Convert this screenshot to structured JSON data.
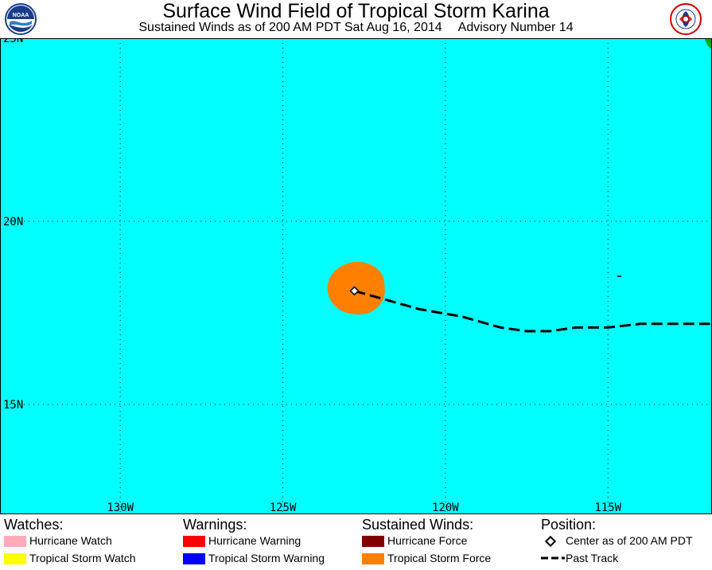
{
  "header": {
    "title": "Surface Wind Field of Tropical Storm Karina",
    "subtitle_left": "Sustained Winds as of 200 AM PDT Sat Aug 16, 2014",
    "subtitle_right": "Advisory Number 14",
    "left_logo_text": "NOAA",
    "right_logo_text": "NATIONAL WEATHER SERVICE"
  },
  "map": {
    "colors": {
      "ocean": "#00ffff",
      "land": "#00aa00",
      "grid": "#000000",
      "tropical_storm_force": "#ff8000",
      "hurricane_force": "#800000",
      "hurricane_watch": "#ffaabb",
      "tropical_storm_watch": "#ffff00",
      "hurricane_warning": "#ff0000",
      "tropical_storm_warning": "#0000ff"
    },
    "lat_labels": [
      "25N",
      "20N",
      "15N"
    ],
    "lon_labels": [
      "130W",
      "125W",
      "120W",
      "115W"
    ],
    "lat_range": [
      12.0,
      25.0
    ],
    "lon_range": [
      -133.7,
      -111.8
    ],
    "storm_center": {
      "lat": 18.1,
      "lon": -122.8
    },
    "past_track": [
      {
        "lat": 18.1,
        "lon": -122.8
      },
      {
        "lat": 17.9,
        "lon": -122.0
      },
      {
        "lat": 17.6,
        "lon": -120.8
      },
      {
        "lat": 17.4,
        "lon": -119.5
      },
      {
        "lat": 17.1,
        "lon": -118.3
      },
      {
        "lat": 17.0,
        "lon": -117.5
      },
      {
        "lat": 17.0,
        "lon": -116.8
      },
      {
        "lat": 17.1,
        "lon": -116.0
      },
      {
        "lat": 17.1,
        "lon": -115.0
      },
      {
        "lat": 17.2,
        "lon": -114.0
      },
      {
        "lat": 17.2,
        "lon": -113.0
      },
      {
        "lat": 17.2,
        "lon": -111.8
      }
    ]
  },
  "legend": {
    "watches": {
      "heading": "Watches:",
      "items": [
        "Hurricane Watch",
        "Tropical Storm Watch"
      ]
    },
    "warnings": {
      "heading": "Warnings:",
      "items": [
        "Hurricane Warning",
        "Tropical Storm Warning"
      ]
    },
    "winds": {
      "heading": "Sustained Winds:",
      "items": [
        "Hurricane Force",
        "Tropical Storm Force"
      ]
    },
    "position": {
      "heading": "Position:",
      "items": [
        "Center as of 200 AM PDT",
        "Past Track"
      ]
    }
  }
}
